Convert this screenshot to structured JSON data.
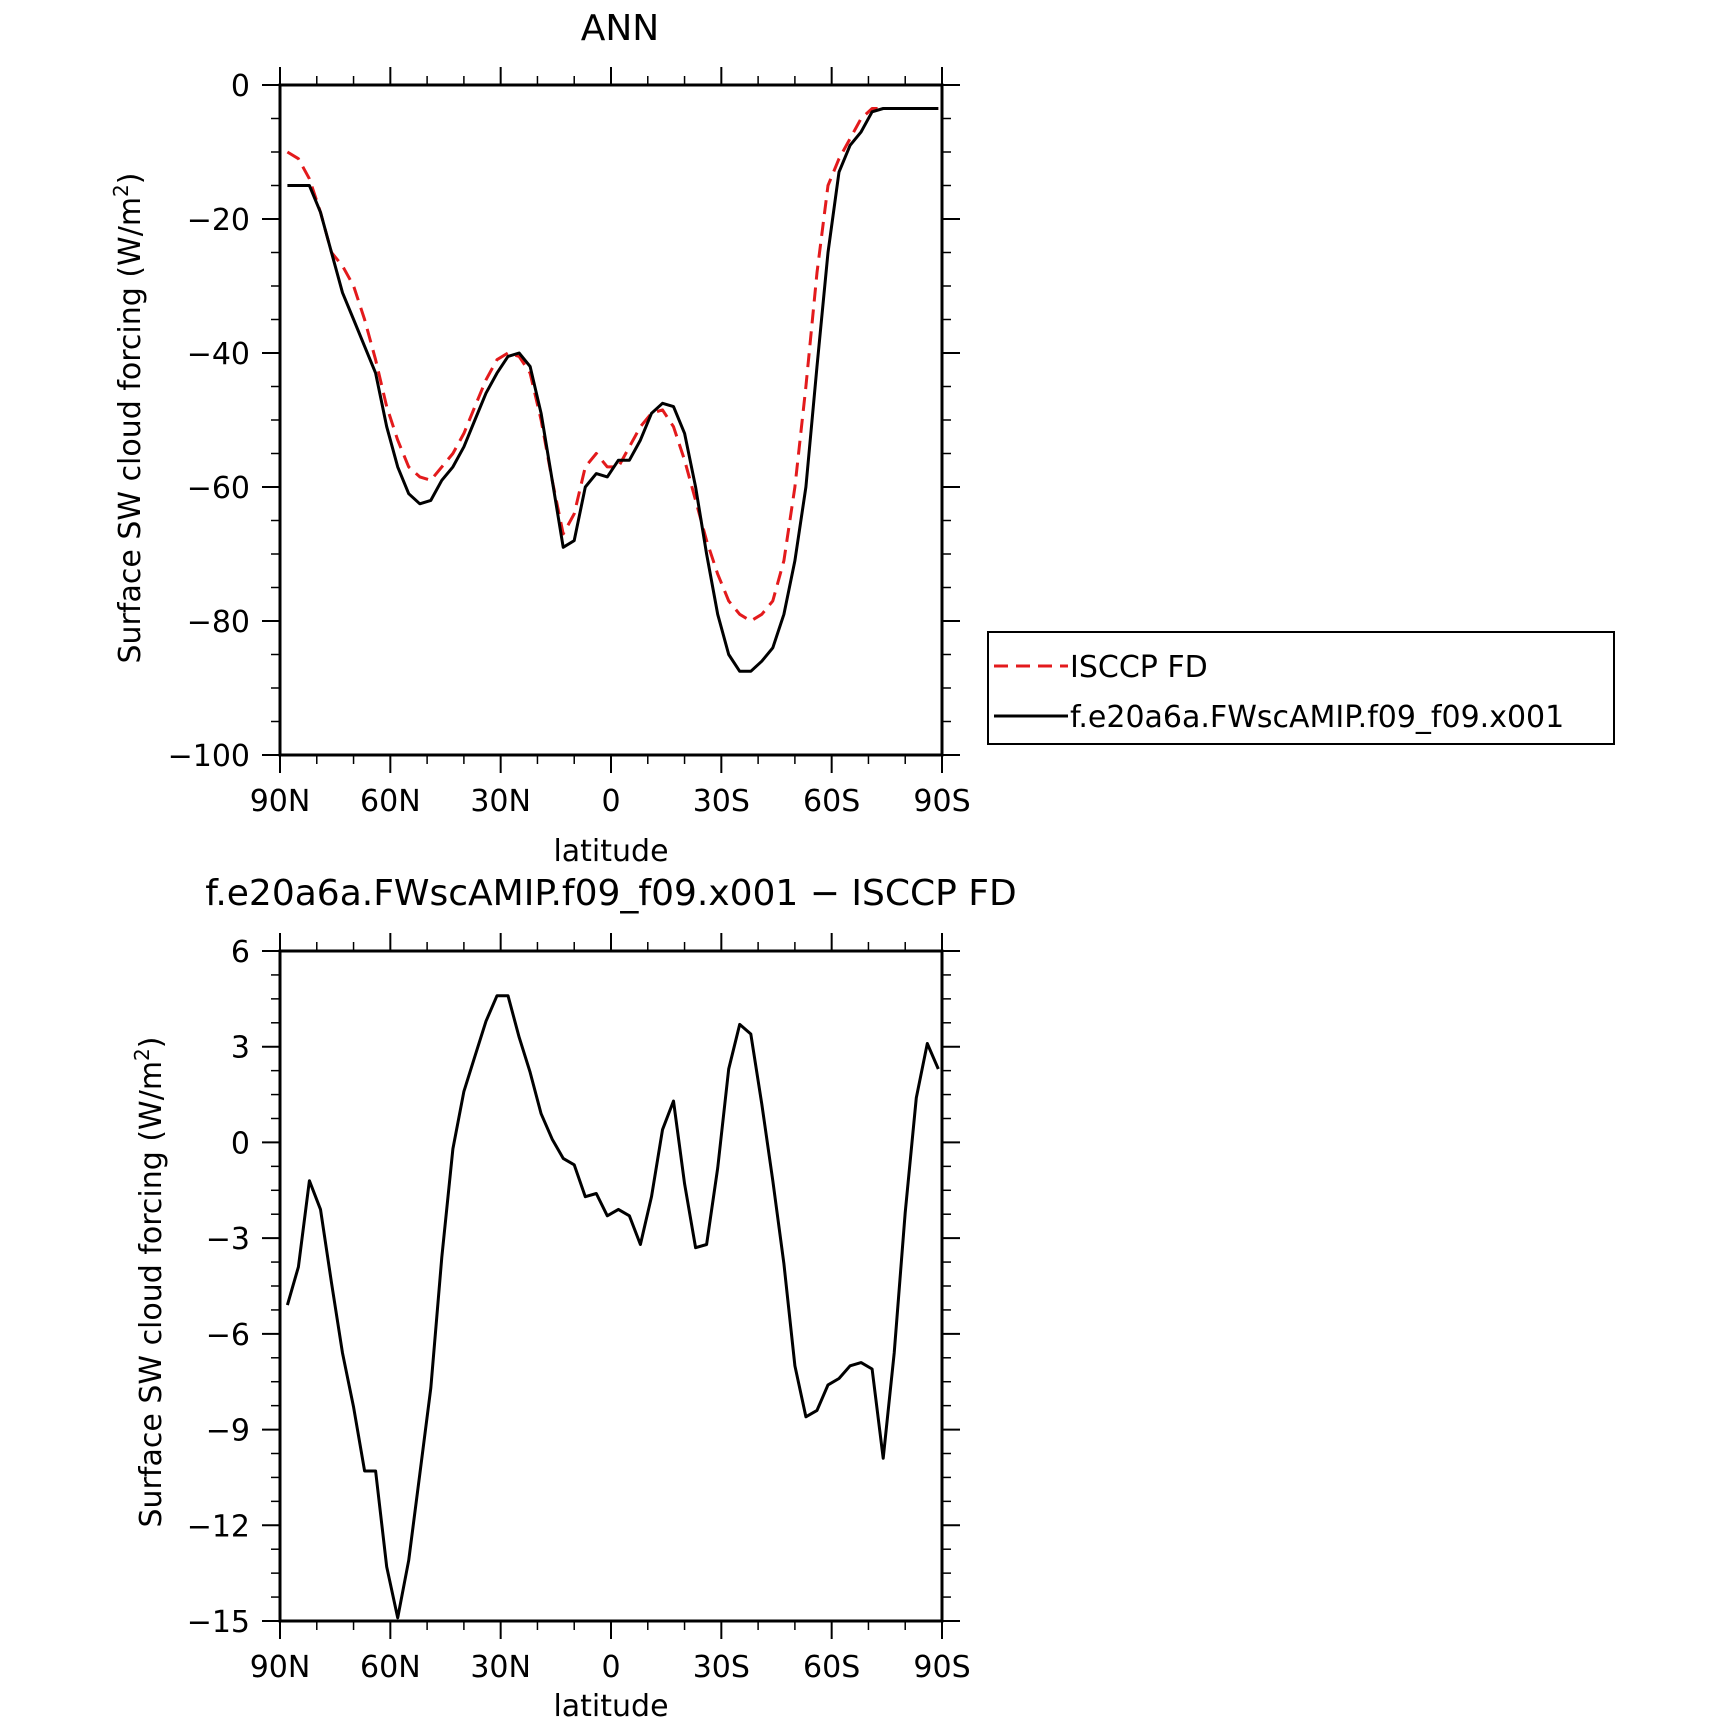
{
  "colors": {
    "obs": "#e31a1c",
    "model": "#000000",
    "axes": "#000000",
    "background": "#ffffff"
  },
  "chart_data": [
    {
      "type": "line",
      "title": "ANN",
      "xlabel": "latitude",
      "ylabel": "Surface SW cloud forcing (W/m",
      "ylabel_sup": "2",
      "ylabel_close": ")",
      "xlim": [
        90,
        -90
      ],
      "ylim": [
        -100,
        0
      ],
      "yticks": [
        0,
        -20,
        -40,
        -60,
        -80,
        -100
      ],
      "ytick_labels": [
        "0",
        "−20",
        "−40",
        "−60",
        "−80",
        "−100"
      ],
      "xticks": [
        90,
        60,
        30,
        0,
        -30,
        -60,
        -90
      ],
      "xtick_labels": [
        "90N",
        "60N",
        "30N",
        "0",
        "30S",
        "60S",
        "90S"
      ],
      "grid": false,
      "legend_position": "right",
      "series": [
        {
          "name": "ISCCP FD",
          "style": "dashed",
          "color": "#e31a1c",
          "x": [
            88,
            85,
            82,
            79,
            76,
            73,
            70,
            67,
            64,
            61,
            58,
            55,
            52,
            49,
            46,
            43,
            40,
            37,
            34,
            31,
            28,
            25,
            22,
            19,
            16,
            13,
            10,
            7,
            4,
            1,
            -2,
            -5,
            -8,
            -11,
            -14,
            -17,
            -20,
            -23,
            -26,
            -29,
            -32,
            -35,
            -38,
            -41,
            -44,
            -47,
            -50,
            -53,
            -56,
            -59,
            -62,
            -65,
            -68,
            -71,
            -74,
            -77,
            -80,
            -83,
            -86,
            -89
          ],
          "y": [
            -10,
            -11,
            -14,
            -19,
            -25,
            -27,
            -30,
            -35,
            -41,
            -48,
            -53,
            -57,
            -58.5,
            -59,
            -57,
            -55,
            -52,
            -48,
            -44,
            -41,
            -40,
            -40.5,
            -43,
            -50,
            -59,
            -67,
            -64,
            -57,
            -55,
            -57,
            -57,
            -54,
            -51,
            -49,
            -48.5,
            -51,
            -56,
            -62,
            -68,
            -73,
            -77,
            -79,
            -80,
            -79,
            -77,
            -71,
            -60,
            -45,
            -28,
            -15,
            -11,
            -8,
            -5,
            -3.5,
            -3.5,
            -3.5,
            -3.5,
            -3.5,
            -3.5,
            -3.5
          ]
        },
        {
          "name": "f.e20a6a.FWscAMIP.f09_f09.x001",
          "style": "solid",
          "color": "#000000",
          "x": [
            88,
            85,
            82,
            79,
            76,
            73,
            70,
            67,
            64,
            61,
            58,
            55,
            52,
            49,
            46,
            43,
            40,
            37,
            34,
            31,
            28,
            25,
            22,
            19,
            16,
            13,
            10,
            7,
            4,
            1,
            -2,
            -5,
            -8,
            -11,
            -14,
            -17,
            -20,
            -23,
            -26,
            -29,
            -32,
            -35,
            -38,
            -41,
            -44,
            -47,
            -50,
            -53,
            -56,
            -59,
            -62,
            -65,
            -68,
            -71,
            -74,
            -77,
            -80,
            -83,
            -86,
            -89
          ],
          "y": [
            -15,
            -15,
            -15,
            -19,
            -25,
            -31,
            -35,
            -39,
            -43,
            -51,
            -57,
            -61,
            -62.5,
            -62,
            -59,
            -57,
            -54,
            -50,
            -46,
            -43,
            -40.5,
            -40,
            -42,
            -49,
            -59,
            -69,
            -68,
            -60,
            -58,
            -58.5,
            -56,
            -56,
            -53,
            -49,
            -47.5,
            -48,
            -52,
            -60,
            -70,
            -79,
            -85,
            -87.5,
            -87.5,
            -86,
            -84,
            -79,
            -71,
            -60,
            -42,
            -25,
            -13,
            -9,
            -7,
            -4,
            -3.5,
            -3.5,
            -3.5,
            -3.5,
            -3.5,
            -3.5
          ]
        }
      ]
    },
    {
      "type": "line",
      "title": "f.e20a6a.FWscAMIP.f09_f09.x001 − ISCCP FD",
      "xlabel": "latitude",
      "ylabel": "Surface SW cloud forcing (W/m",
      "ylabel_sup": "2",
      "ylabel_close": ")",
      "xlim": [
        90,
        -90
      ],
      "ylim": [
        -15,
        6
      ],
      "yticks": [
        6,
        3,
        0,
        -3,
        -6,
        -9,
        -12,
        -15
      ],
      "ytick_labels": [
        "6",
        "3",
        "0",
        "−3",
        "−6",
        "−9",
        "−12",
        "−15"
      ],
      "xticks": [
        90,
        60,
        30,
        0,
        -30,
        -60,
        -90
      ],
      "xtick_labels": [
        "90N",
        "60N",
        "30N",
        "0",
        "30S",
        "60S",
        "90S"
      ],
      "grid": false,
      "series": [
        {
          "style": "solid",
          "color": "#000000",
          "x": [
            88,
            85,
            82,
            79,
            76,
            73,
            70,
            67,
            64,
            61,
            58,
            55,
            52,
            49,
            46,
            43,
            40,
            37,
            34,
            31,
            28,
            25,
            22,
            19,
            16,
            13,
            10,
            7,
            4,
            1,
            -2,
            -5,
            -8,
            -11,
            -14,
            -17,
            -20,
            -23,
            -26,
            -29,
            -32,
            -35,
            -38,
            -41,
            -44,
            -47,
            -50,
            -53,
            -56,
            -59,
            -62,
            -65,
            -68,
            -71,
            -74,
            -77,
            -80,
            -83,
            -86,
            -89
          ],
          "y": [
            -5.1,
            -3.9,
            -1.2,
            -2.1,
            -4.4,
            -6.6,
            -8.3,
            -10.3,
            -10.3,
            -13.3,
            -14.9,
            -13.1,
            -10.4,
            -7.7,
            -3.6,
            -0.2,
            1.6,
            2.7,
            3.8,
            4.6,
            4.6,
            3.3,
            2.2,
            0.9,
            0.1,
            -0.5,
            -0.7,
            -1.7,
            -1.6,
            -2.3,
            -2.1,
            -2.3,
            -3.2,
            -1.7,
            0.4,
            1.3,
            -1.3,
            -3.3,
            -3.2,
            -0.8,
            2.3,
            3.7,
            3.4,
            1.2,
            -1.2,
            -3.8,
            -7.0,
            -8.6,
            -8.4,
            -7.6,
            -7.4,
            -7.0,
            -6.9,
            -7.1,
            -9.9,
            -6.6,
            -2.2,
            1.4,
            3.1,
            2.3
          ]
        }
      ]
    }
  ]
}
